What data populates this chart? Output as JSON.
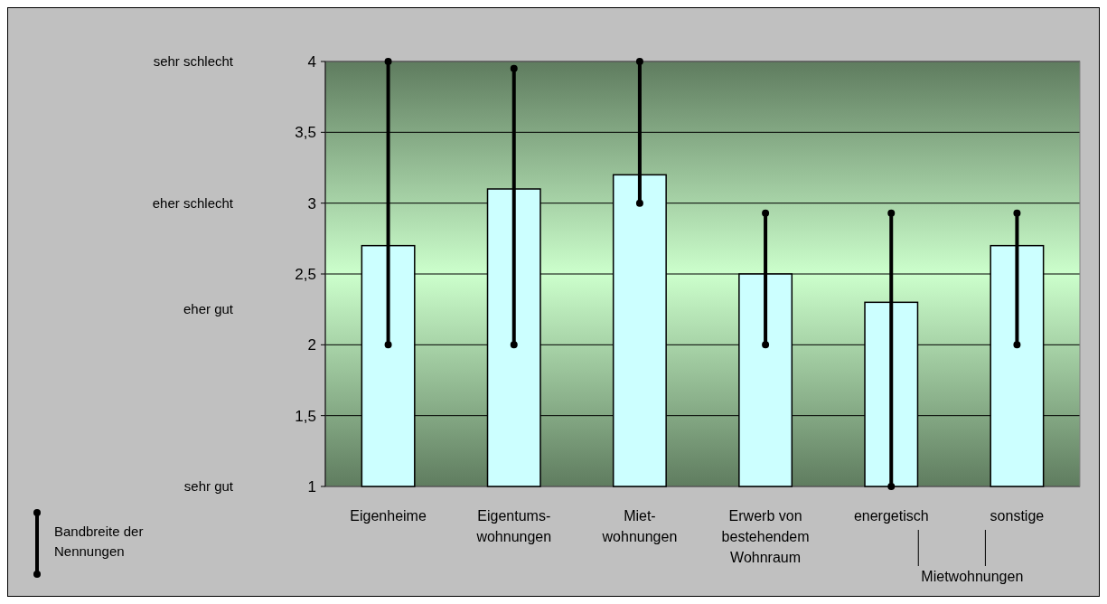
{
  "chart_data": {
    "type": "bar",
    "categories": [
      "Eigenheime",
      "Eigentums-\nwohnungen",
      "Miet-\nwohnungen",
      "Erwerb von\nbestehendem\nWohnraum",
      "energetisch",
      "sonstige"
    ],
    "values": [
      2.7,
      3.1,
      3.2,
      2.5,
      2.3,
      2.7
    ],
    "errors": [
      [
        2,
        4
      ],
      [
        2,
        3.95
      ],
      [
        3,
        4
      ],
      [
        2,
        2.93
      ],
      [
        1,
        2.93
      ],
      [
        2,
        2.93
      ]
    ],
    "color": "#ccffff",
    "ylim": [
      1,
      4
    ],
    "yticks": [
      1,
      {
        "value": 1.5,
        "label": "1,5"
      },
      2,
      {
        "value": 2.5,
        "label": "2,5"
      },
      3,
      {
        "value": 3.5,
        "label": "3,5"
      },
      4
    ],
    "grid": "y",
    "annotations": [
      "sehr schlecht",
      "eher schlecht",
      "eher gut",
      "sehr gut",
      "Bandbreite der Nennungen",
      "Mietwohnungen"
    ]
  }
}
